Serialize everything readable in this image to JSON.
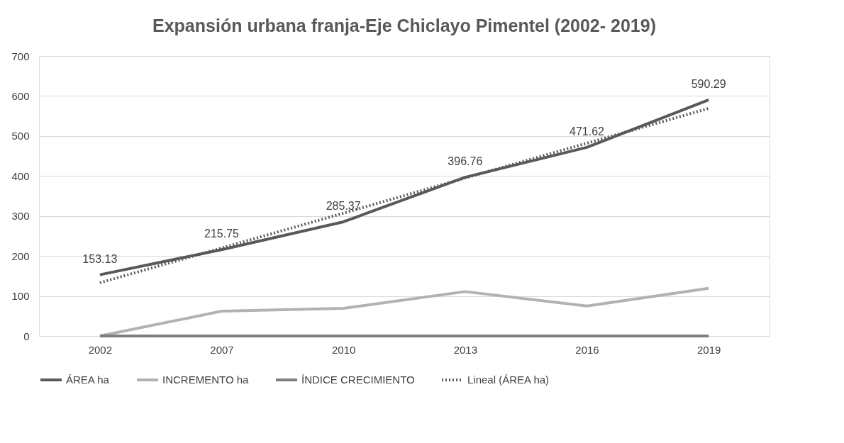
{
  "chart_data": {
    "type": "line",
    "title": "Expansión urbana franja-Eje Chiclayo Pimentel (2002- 2019)",
    "categories": [
      "2002",
      "2007",
      "2010",
      "2013",
      "2016",
      "2019"
    ],
    "series": [
      {
        "name": "ÁREA ha",
        "color": "#595959",
        "values": [
          153.13,
          215.75,
          285.37,
          396.76,
          471.62,
          590.29
        ],
        "value_labels": [
          "153.13",
          "215.75",
          "285.37",
          "396.76",
          "471.62",
          "590.29"
        ],
        "line_style": "solid"
      },
      {
        "name": "INCREMENTO ha",
        "color": "#b2b2b2",
        "values": [
          0,
          62,
          69,
          111,
          75,
          119
        ],
        "line_style": "solid"
      },
      {
        "name": "ÍNDICE CRECIMIENTO",
        "color": "#7f7f7f",
        "values": [
          0,
          0,
          0,
          0,
          0,
          0
        ],
        "line_style": "solid"
      },
      {
        "name": "Lineal (ÁREA ha)",
        "type": "line",
        "color": "#595959",
        "values": [
          133,
          220,
          307,
          395,
          482,
          569
        ],
        "line_style": "dotted"
      }
    ],
    "ylim": [
      0,
      700
    ],
    "yticks": [
      0,
      100,
      200,
      300,
      400,
      500,
      600,
      700
    ],
    "grid": "y",
    "legend": "bottom",
    "marker": "none"
  }
}
